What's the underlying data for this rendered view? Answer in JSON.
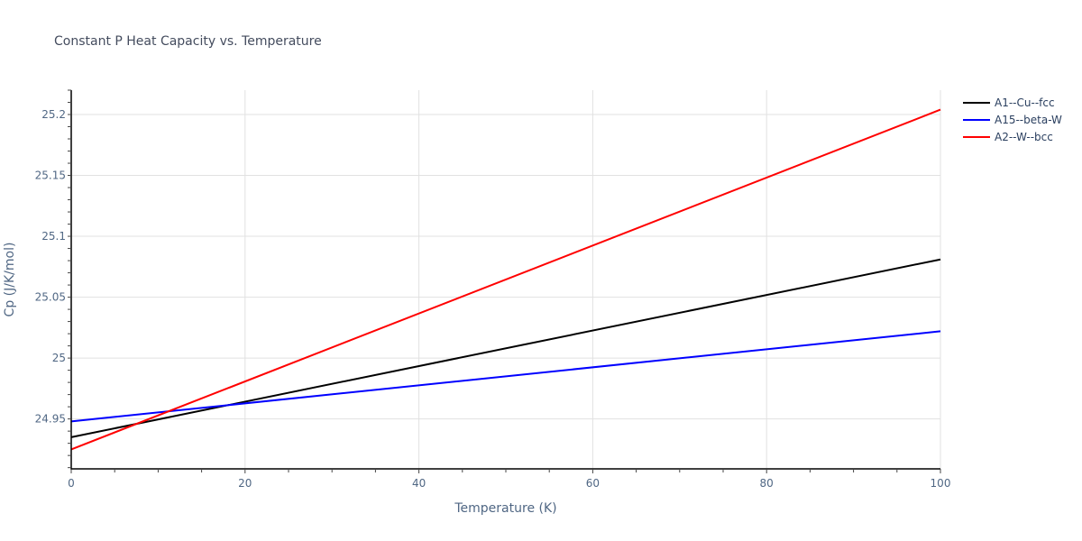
{
  "chart_data": {
    "type": "line",
    "title": "Constant P Heat Capacity vs. Temperature",
    "xlabel": "Temperature (K)",
    "ylabel": "Cp (J/K/mol)",
    "xlim": [
      0,
      100
    ],
    "ylim": [
      24.909,
      25.22
    ],
    "x_ticks": [
      0,
      20,
      40,
      60,
      80,
      100
    ],
    "y_ticks": [
      24.95,
      25,
      25.05,
      25.1,
      25.15,
      25.2
    ],
    "y_tick_labels": [
      "24.95",
      "25",
      "25.05",
      "25.1",
      "25.15",
      "25.2"
    ],
    "grid": true,
    "legend_position": "top-right-outside",
    "series": [
      {
        "name": "A1--Cu--fcc",
        "color": "#000000",
        "x": [
          0,
          100
        ],
        "values": [
          24.935,
          25.081
        ]
      },
      {
        "name": "A15--beta-W",
        "color": "#0000ff",
        "x": [
          0,
          100
        ],
        "values": [
          24.948,
          25.022
        ]
      },
      {
        "name": "A2--W--bcc",
        "color": "#ff0000",
        "x": [
          0,
          100
        ],
        "values": [
          24.925,
          25.204
        ]
      }
    ]
  }
}
